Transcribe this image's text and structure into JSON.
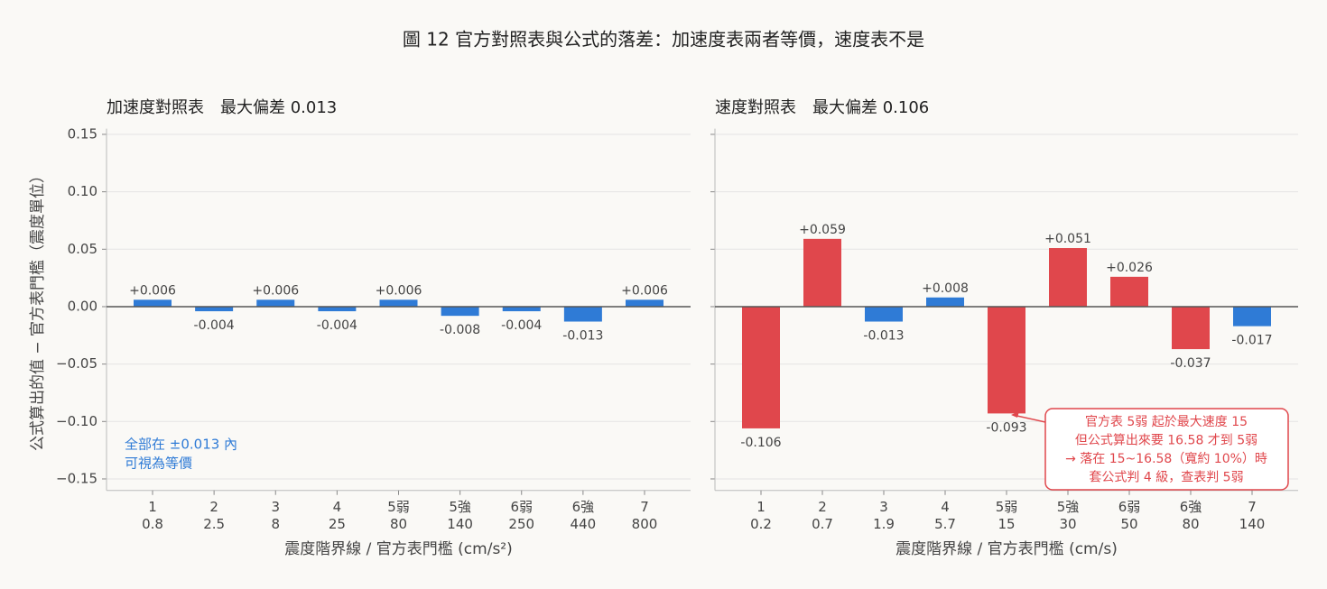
{
  "title": "圖 12  官方對照表與公式的落差：加速度表兩者等價，速度表不是",
  "chart_data": [
    {
      "type": "bar",
      "title": "加速度對照表　最大偏差 0.013",
      "ylabel": "公式算出的值 − 官方表門檻（震度單位）",
      "xlabel": "震度階界線 / 官方表門檻 (cm/s²)",
      "categories": [
        "1",
        "2",
        "3",
        "4",
        "5弱",
        "5強",
        "6弱",
        "6強",
        "7"
      ],
      "thresholds": [
        0.8,
        2.5,
        8,
        25,
        80,
        140,
        250,
        440,
        800
      ],
      "values": [
        0.006,
        -0.004,
        0.006,
        -0.004,
        0.006,
        -0.008,
        -0.004,
        -0.013,
        0.006
      ],
      "value_labels": [
        "+0.006",
        "-0.004",
        "+0.006",
        "-0.004",
        "+0.006",
        "-0.008",
        "-0.004",
        "-0.013",
        "+0.006"
      ],
      "colors": [
        "#2f7bd6",
        "#2f7bd6",
        "#2f7bd6",
        "#2f7bd6",
        "#2f7bd6",
        "#2f7bd6",
        "#2f7bd6",
        "#2f7bd6",
        "#2f7bd6"
      ],
      "ylim": [
        -0.16,
        0.155
      ],
      "yticks": [
        {
          "value": 0.15,
          "label": "0.15"
        },
        {
          "value": 0.1,
          "label": "0.10"
        },
        {
          "value": 0.05,
          "label": "0.05"
        },
        {
          "value": 0,
          "label": "0.00"
        },
        {
          "value": -0.05,
          "label": "−0.05"
        },
        {
          "value": -0.1,
          "label": "−0.10"
        },
        {
          "value": -0.15,
          "label": "−0.15"
        }
      ],
      "grid": true,
      "annotation": {
        "lines": [
          "全部在 ±0.013 內",
          "可視為等價"
        ],
        "color": "#2f7bd6"
      }
    },
    {
      "type": "bar",
      "title": "速度對照表　最大偏差 0.106",
      "xlabel": "震度階界線 / 官方表門檻 (cm/s)",
      "categories": [
        "1",
        "2",
        "3",
        "4",
        "5弱",
        "5強",
        "6弱",
        "6強",
        "7"
      ],
      "thresholds": [
        0.2,
        0.7,
        1.9,
        5.7,
        15,
        30,
        50,
        80,
        140
      ],
      "values": [
        -0.106,
        0.059,
        -0.013,
        0.008,
        -0.093,
        0.051,
        0.026,
        -0.037,
        -0.017
      ],
      "value_labels": [
        "-0.106",
        "+0.059",
        "-0.013",
        "+0.008",
        "-0.093",
        "+0.051",
        "+0.026",
        "-0.037",
        "-0.017"
      ],
      "colors": [
        "#e0474c",
        "#e0474c",
        "#2f7bd6",
        "#2f7bd6",
        "#e0474c",
        "#e0474c",
        "#e0474c",
        "#e0474c",
        "#2f7bd6"
      ],
      "sharey": true,
      "grid": true,
      "annotation": {
        "lines": [
          "官方表 5弱 起於最大速度 15",
          "但公式算出來要 16.58 才到 5弱",
          "→ 落在 15~16.58（寬約 10%）時",
          "套公式判 4 級，查表判 5弱"
        ],
        "color": "#e0474c",
        "box": true
      }
    }
  ]
}
